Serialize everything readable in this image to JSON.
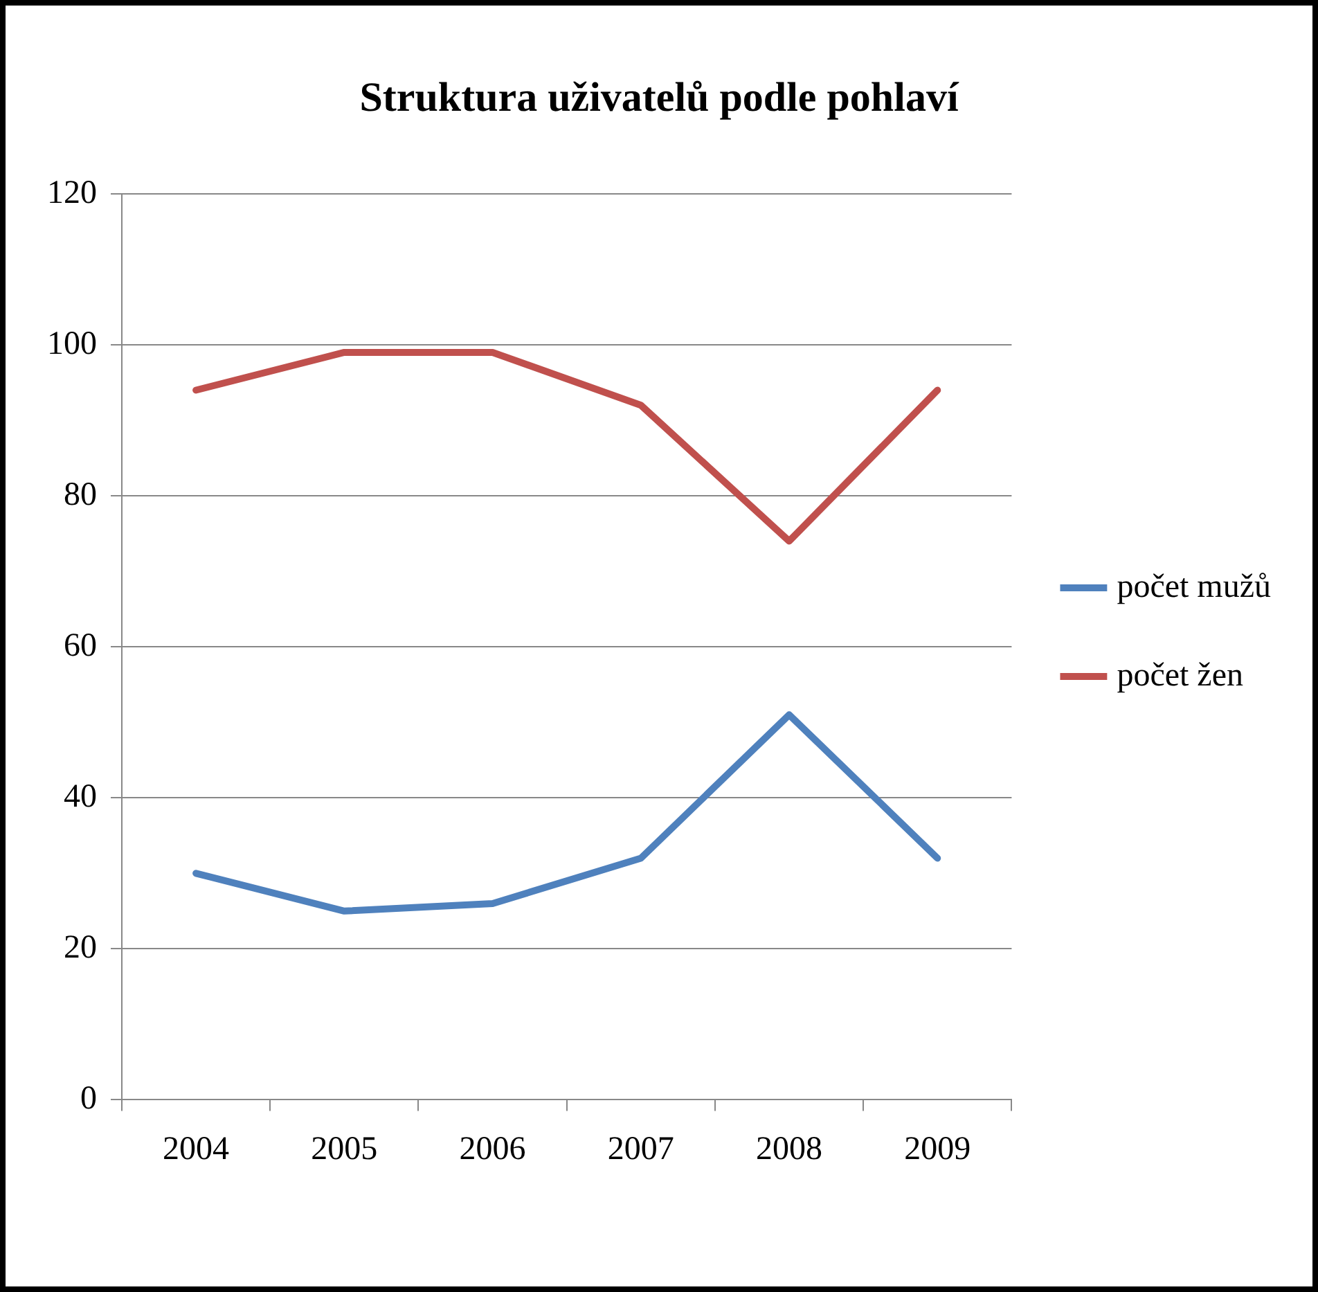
{
  "chart_data": {
    "type": "line",
    "title": "Struktura uživatelů podle pohlaví",
    "categories": [
      "2004",
      "2005",
      "2006",
      "2007",
      "2008",
      "2009"
    ],
    "series": [
      {
        "name": "počet mužů",
        "color": "#4f81bd",
        "values": [
          30,
          25,
          26,
          32,
          51,
          32
        ]
      },
      {
        "name": "počet žen",
        "color": "#c0504d",
        "values": [
          94,
          99,
          99,
          92,
          74,
          94
        ]
      }
    ],
    "ylim": [
      0,
      120
    ],
    "yticks": [
      0,
      20,
      40,
      60,
      80,
      100,
      120
    ],
    "grid": "y",
    "legend": "right",
    "marker": "none",
    "line_style": "solid"
  }
}
